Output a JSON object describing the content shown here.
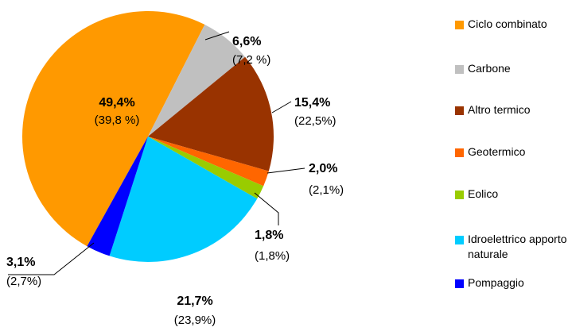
{
  "chart_data": {
    "type": "pie",
    "categories": [
      "Ciclo combinato",
      "Carbone",
      "Altro termico",
      "Geotermico",
      "Eolico",
      "Idroelettrico apporto naturale",
      "Pompaggio"
    ],
    "values": [
      49.4,
      6.6,
      15.4,
      2.0,
      1.8,
      21.7,
      3.1
    ],
    "value_labels": [
      "49,4%",
      "6,6%",
      "15,4%",
      "2,0%",
      "1,8%",
      "21,7%",
      "3,1%"
    ],
    "secondary_labels": [
      "(39,8 %)",
      "(7,2 %)",
      "(22,5%)",
      "(2,1%)",
      "(1,8%)",
      "(23,9%)",
      "(2,7%)"
    ],
    "colors": [
      "#ff9900",
      "#c0c0c0",
      "#993300",
      "#ff6600",
      "#99cc00",
      "#00ccff",
      "#0000ff"
    ],
    "legend": "right"
  }
}
